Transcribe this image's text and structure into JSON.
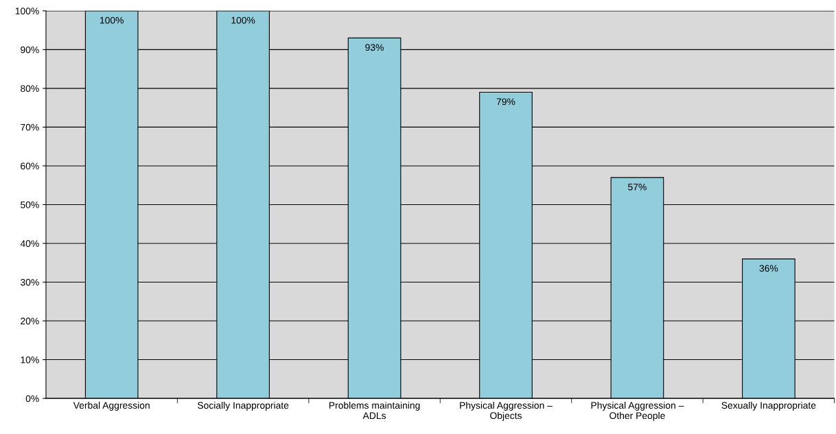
{
  "chart_data": {
    "type": "bar",
    "categories": [
      "Verbal Aggression",
      "Socially Inappropriate",
      "Problems maintaining\nADLs",
      "Physical Aggression –\nObjects",
      "Physical Aggression –\nOther People",
      "Sexually Inappropriate"
    ],
    "values": [
      100,
      100,
      93,
      79,
      57,
      36
    ],
    "value_labels": [
      "100%",
      "100%",
      "93%",
      "79%",
      "57%",
      "36%"
    ],
    "color": "#92cddc",
    "ylim": [
      0,
      100
    ],
    "yticks": [
      {
        "value": 0,
        "label": "0%"
      },
      {
        "value": 10,
        "label": "10%"
      },
      {
        "value": 20,
        "label": "20%"
      },
      {
        "value": 30,
        "label": "30%"
      },
      {
        "value": 40,
        "label": "40%"
      },
      {
        "value": 50,
        "label": "50%"
      },
      {
        "value": 60,
        "label": "60%"
      },
      {
        "value": 70,
        "label": "70%"
      },
      {
        "value": 80,
        "label": "80%"
      },
      {
        "value": 90,
        "label": "90%"
      },
      {
        "value": 100,
        "label": "100%"
      }
    ],
    "grid": "y"
  }
}
